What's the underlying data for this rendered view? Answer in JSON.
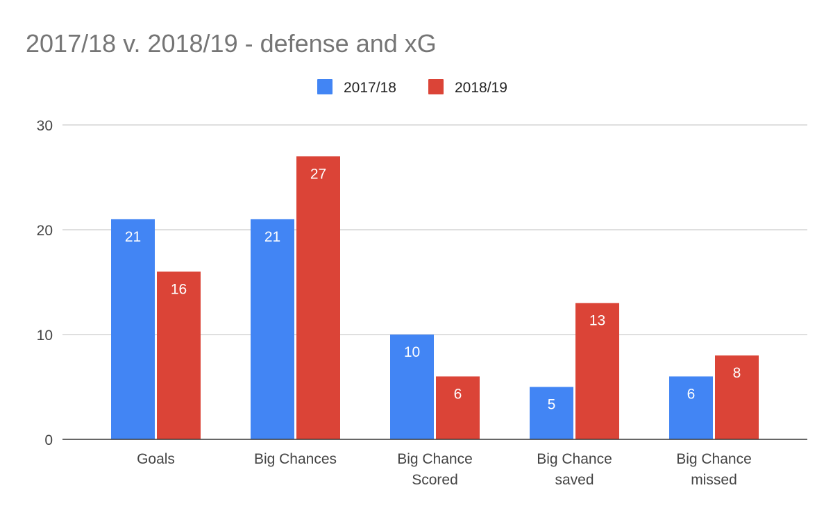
{
  "chart_data": {
    "type": "bar",
    "title": "2017/18 v. 2018/19 - defense and xG",
    "categories": [
      [
        "Goals"
      ],
      [
        "Big Chances"
      ],
      [
        "Big Chance",
        "Scored"
      ],
      [
        "Big Chance",
        "saved"
      ],
      [
        "Big Chance",
        "missed"
      ]
    ],
    "series": [
      {
        "name": "2017/18",
        "color": "#4285f4",
        "values": [
          21,
          21,
          10,
          5,
          6
        ]
      },
      {
        "name": "2018/19",
        "color": "#db4437",
        "values": [
          16,
          27,
          6,
          13,
          8
        ]
      }
    ],
    "ylim": [
      0,
      30
    ],
    "yticks": [
      0,
      10,
      20,
      30
    ],
    "xlabel": "",
    "ylabel": "",
    "legend_position": "top-center",
    "grid": true
  }
}
